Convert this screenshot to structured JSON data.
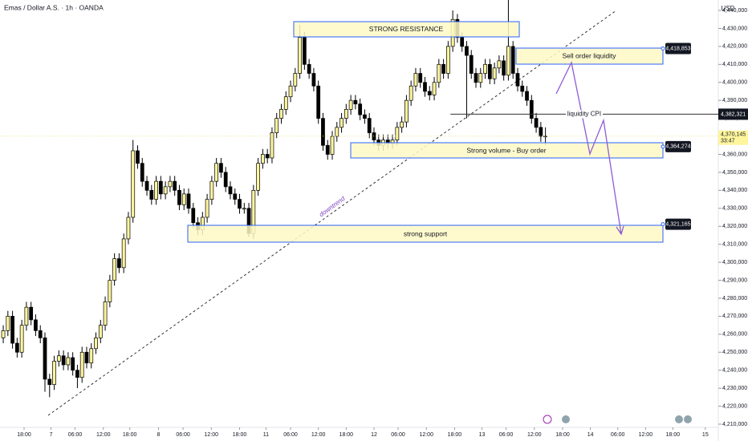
{
  "chart_data": {
    "type": "candlestick",
    "title": "Emas / Dollar A.S. · 1h · OANDA",
    "currency": "USD",
    "up_color": "#fff59d",
    "down_color": "#000000",
    "xlim": [
      -0.7,
      154.3
    ],
    "xticks": [
      {
        "value": 4.5,
        "label": "18:00"
      },
      {
        "value": 10.3,
        "label": "7"
      },
      {
        "value": 15.5,
        "label": "06:00"
      },
      {
        "value": 21.6,
        "label": "12:00"
      },
      {
        "value": 27.3,
        "label": "18:00"
      },
      {
        "value": 33.5,
        "label": "8"
      },
      {
        "value": 38.8,
        "label": "06:00"
      },
      {
        "value": 44.9,
        "label": "12:00"
      },
      {
        "value": 51,
        "label": "18:00"
      },
      {
        "value": 56.7,
        "label": "11"
      },
      {
        "value": 62,
        "label": "06:00"
      },
      {
        "value": 68,
        "label": "12:00"
      },
      {
        "value": 74,
        "label": "18:00"
      },
      {
        "value": 80,
        "label": "12"
      },
      {
        "value": 85.2,
        "label": "06:00"
      },
      {
        "value": 91.3,
        "label": "12:00"
      },
      {
        "value": 97.4,
        "label": "18:00"
      },
      {
        "value": 103.3,
        "label": "13"
      },
      {
        "value": 108.5,
        "label": "06:00"
      },
      {
        "value": 114.6,
        "label": "12:00"
      },
      {
        "value": 120.7,
        "label": "18:00"
      },
      {
        "value": 126.7,
        "label": "14"
      },
      {
        "value": 132.6,
        "label": "06:00"
      },
      {
        "value": 138.6,
        "label": "12:00"
      },
      {
        "value": 144.5,
        "label": "18:00"
      },
      {
        "value": 151.5,
        "label": "15"
      }
    ],
    "ylim": [
      4205100,
      4445800
    ],
    "yticks": [
      {
        "value": 4440000,
        "label": "4,440,000"
      },
      {
        "value": 4430000,
        "label": "4,430,000"
      },
      {
        "value": 4420000,
        "label": "4,420,000"
      },
      {
        "value": 4410000,
        "label": "4,410,000"
      },
      {
        "value": 4400000,
        "label": "4,400,000"
      },
      {
        "value": 4390000,
        "label": "4,390,000"
      },
      {
        "value": 4380000,
        "label": "4,380,000"
      },
      {
        "value": 4370000,
        "label": "4,370,000"
      },
      {
        "value": 4360000,
        "label": "4,360,000"
      },
      {
        "value": 4350000,
        "label": "4,350,000"
      },
      {
        "value": 4340000,
        "label": "4,340,000"
      },
      {
        "value": 4330000,
        "label": "4,330,000"
      },
      {
        "value": 4320000,
        "label": "4,320,000"
      },
      {
        "value": 4310000,
        "label": "4,310,000"
      },
      {
        "value": 4300000,
        "label": "4,300,000"
      },
      {
        "value": 4290000,
        "label": "4,290,000"
      },
      {
        "value": 4280000,
        "label": "4,280,000"
      },
      {
        "value": 4270000,
        "label": "4,270,000"
      },
      {
        "value": 4260000,
        "label": "4,260,000"
      },
      {
        "value": 4250000,
        "label": "4,250,000"
      },
      {
        "value": 4240000,
        "label": "4,240,000"
      },
      {
        "value": 4230000,
        "label": "4,230,000"
      },
      {
        "value": 4220000,
        "label": "4,220,000"
      },
      {
        "value": 4210000,
        "label": "4,210,000"
      }
    ],
    "candles": [
      [
        4258000,
        4265000,
        4255000,
        4262000
      ],
      [
        4262000,
        4273000,
        4259000,
        4270000
      ],
      [
        4270000,
        4273000,
        4252000,
        4255000
      ],
      [
        4255000,
        4258000,
        4247000,
        4250000
      ],
      [
        4250000,
        4268000,
        4247000,
        4265000
      ],
      [
        4265000,
        4278000,
        4262000,
        4275000
      ],
      [
        4275000,
        4278000,
        4265000,
        4268000
      ],
      [
        4268000,
        4271000,
        4259000,
        4262000
      ],
      [
        4262000,
        4265000,
        4255000,
        4258000
      ],
      [
        4258000,
        4261000,
        4228000,
        4235000
      ],
      [
        4235000,
        4238000,
        4225000,
        4232000
      ],
      [
        4232000,
        4248000,
        4229000,
        4245000
      ],
      [
        4245000,
        4251000,
        4242000,
        4248000
      ],
      [
        4248000,
        4251000,
        4240000,
        4243000
      ],
      [
        4243000,
        4250000,
        4240000,
        4247000
      ],
      [
        4247000,
        4250000,
        4237000,
        4240000
      ],
      [
        4240000,
        4243000,
        4230000,
        4236000
      ],
      [
        4236000,
        4253000,
        4233000,
        4250000
      ],
      [
        4250000,
        4253000,
        4241000,
        4244000
      ],
      [
        4244000,
        4255000,
        4241000,
        4252000
      ],
      [
        4252000,
        4261000,
        4249000,
        4258000
      ],
      [
        4258000,
        4268000,
        4255000,
        4265000
      ],
      [
        4265000,
        4281000,
        4262000,
        4278000
      ],
      [
        4278000,
        4293000,
        4275000,
        4290000
      ],
      [
        4290000,
        4305000,
        4287000,
        4302000
      ],
      [
        4302000,
        4305000,
        4294000,
        4297000
      ],
      [
        4297000,
        4316000,
        4294000,
        4313000
      ],
      [
        4313000,
        4328000,
        4310000,
        4325000
      ],
      [
        4325000,
        4368000,
        4322000,
        4362000
      ],
      [
        4362000,
        4365000,
        4352000,
        4355000
      ],
      [
        4355000,
        4358000,
        4342000,
        4345000
      ],
      [
        4345000,
        4348000,
        4337000,
        4340000
      ],
      [
        4340000,
        4343000,
        4332000,
        4335000
      ],
      [
        4335000,
        4348000,
        4332000,
        4345000
      ],
      [
        4345000,
        4348000,
        4335000,
        4338000
      ],
      [
        4338000,
        4345000,
        4335000,
        4342000
      ],
      [
        4342000,
        4348000,
        4339000,
        4345000
      ],
      [
        4345000,
        4348000,
        4337000,
        4340000
      ],
      [
        4340000,
        4343000,
        4329000,
        4332000
      ],
      [
        4332000,
        4341000,
        4329000,
        4338000
      ],
      [
        4338000,
        4341000,
        4327000,
        4330000
      ],
      [
        4330000,
        4333000,
        4319000,
        4322000
      ],
      [
        4322000,
        4325000,
        4315000,
        4318000
      ],
      [
        4318000,
        4328000,
        4315000,
        4325000
      ],
      [
        4325000,
        4338000,
        4322000,
        4335000
      ],
      [
        4335000,
        4348000,
        4332000,
        4345000
      ],
      [
        4345000,
        4358000,
        4342000,
        4355000
      ],
      [
        4355000,
        4358000,
        4347000,
        4350000
      ],
      [
        4350000,
        4353000,
        4339000,
        4342000
      ],
      [
        4342000,
        4345000,
        4335000,
        4338000
      ],
      [
        4338000,
        4341000,
        4332000,
        4335000
      ],
      [
        4335000,
        4338000,
        4327000,
        4330000
      ],
      [
        4330000,
        4333000,
        4327000,
        4330000
      ],
      [
        4330000,
        4333000,
        4314000,
        4316000
      ],
      [
        4316000,
        4343000,
        4313000,
        4340000
      ],
      [
        4340000,
        4358000,
        4337000,
        4355000
      ],
      [
        4355000,
        4363000,
        4352000,
        4360000
      ],
      [
        4360000,
        4363000,
        4355000,
        4358000
      ],
      [
        4358000,
        4375000,
        4355000,
        4372000
      ],
      [
        4372000,
        4383000,
        4369000,
        4380000
      ],
      [
        4380000,
        4388000,
        4377000,
        4385000
      ],
      [
        4385000,
        4395000,
        4382000,
        4392000
      ],
      [
        4392000,
        4401000,
        4389000,
        4398000
      ],
      [
        4398000,
        4408000,
        4395000,
        4405000
      ],
      [
        4405000,
        4432000,
        4402000,
        4425000
      ],
      [
        4425000,
        4428000,
        4407000,
        4410000
      ],
      [
        4410000,
        4413000,
        4402000,
        4405000
      ],
      [
        4405000,
        4408000,
        4395000,
        4398000
      ],
      [
        4398000,
        4401000,
        4377000,
        4380000
      ],
      [
        4380000,
        4383000,
        4362000,
        4365000
      ],
      [
        4365000,
        4368000,
        4357000,
        4360000
      ],
      [
        4360000,
        4373000,
        4357000,
        4370000
      ],
      [
        4370000,
        4378000,
        4367000,
        4375000
      ],
      [
        4375000,
        4383000,
        4372000,
        4380000
      ],
      [
        4380000,
        4388000,
        4377000,
        4385000
      ],
      [
        4385000,
        4393000,
        4382000,
        4390000
      ],
      [
        4390000,
        4393000,
        4385000,
        4388000
      ],
      [
        4388000,
        4391000,
        4379000,
        4382000
      ],
      [
        4382000,
        4385000,
        4377000,
        4380000
      ],
      [
        4380000,
        4383000,
        4369000,
        4372000
      ],
      [
        4372000,
        4375000,
        4365000,
        4368000
      ],
      [
        4368000,
        4371000,
        4362000,
        4365000
      ],
      [
        4365000,
        4371000,
        4362000,
        4368000
      ],
      [
        4368000,
        4371000,
        4363000,
        4366000
      ],
      [
        4366000,
        4371000,
        4363000,
        4368000
      ],
      [
        4368000,
        4378000,
        4365000,
        4375000
      ],
      [
        4375000,
        4381000,
        4372000,
        4378000
      ],
      [
        4378000,
        4393000,
        4375000,
        4390000
      ],
      [
        4390000,
        4401000,
        4387000,
        4398000
      ],
      [
        4398000,
        4408000,
        4395000,
        4405000
      ],
      [
        4405000,
        4408000,
        4397000,
        4400000
      ],
      [
        4400000,
        4403000,
        4392000,
        4395000
      ],
      [
        4395000,
        4398000,
        4390000,
        4393000
      ],
      [
        4393000,
        4403000,
        4390000,
        4400000
      ],
      [
        4400000,
        4413000,
        4397000,
        4410000
      ],
      [
        4410000,
        4413000,
        4402000,
        4405000
      ],
      [
        4405000,
        4423000,
        4402000,
        4420000
      ],
      [
        4420000,
        4440000,
        4417000,
        4435000
      ],
      [
        4435000,
        4438000,
        4422000,
        4425000
      ],
      [
        4425000,
        4428000,
        4417000,
        4420000
      ],
      [
        4420000,
        4423000,
        4380000,
        4415000
      ],
      [
        4415000,
        4418000,
        4402000,
        4405000
      ],
      [
        4405000,
        4408000,
        4397000,
        4400000
      ],
      [
        4400000,
        4408000,
        4397000,
        4405000
      ],
      [
        4405000,
        4413000,
        4402000,
        4410000
      ],
      [
        4410000,
        4413000,
        4399000,
        4402000
      ],
      [
        4402000,
        4411000,
        4399000,
        4408000
      ],
      [
        4408000,
        4415000,
        4405000,
        4412000
      ],
      [
        4412000,
        4415000,
        4401000,
        4404000
      ],
      [
        4404000,
        4447000,
        4401000,
        4420000
      ],
      [
        4420000,
        4423000,
        4402000,
        4405000
      ],
      [
        4405000,
        4408000,
        4395000,
        4398000
      ],
      [
        4398000,
        4401000,
        4392000,
        4395000
      ],
      [
        4395000,
        4398000,
        4387000,
        4390000
      ],
      [
        4390000,
        4393000,
        4377000,
        4380000
      ],
      [
        4380000,
        4383000,
        4372000,
        4375000
      ],
      [
        4375000,
        4378000,
        4367000,
        4370000
      ],
      [
        4370000,
        4375000,
        4365000,
        4370145
      ]
    ],
    "last_price": {
      "value": 4370145,
      "label": "4,370,145"
    },
    "countdown": "33:47",
    "price_tags": [
      {
        "value": 4418853,
        "label": "4,418,853"
      },
      {
        "value": 4364274,
        "label": "4,364,274"
      },
      {
        "value": 4321165,
        "label": "4,321,165"
      }
    ],
    "cpi_level": {
      "value": 4382321,
      "label": "4,382,321"
    },
    "annotations": {
      "resistance": "STRONG RESISTANCE",
      "sell": "Sell order liquidity",
      "buy": "Strong volume - Buy order",
      "support": "strong support",
      "trend": "downtrend",
      "cpi": "liquidity CPI"
    }
  }
}
